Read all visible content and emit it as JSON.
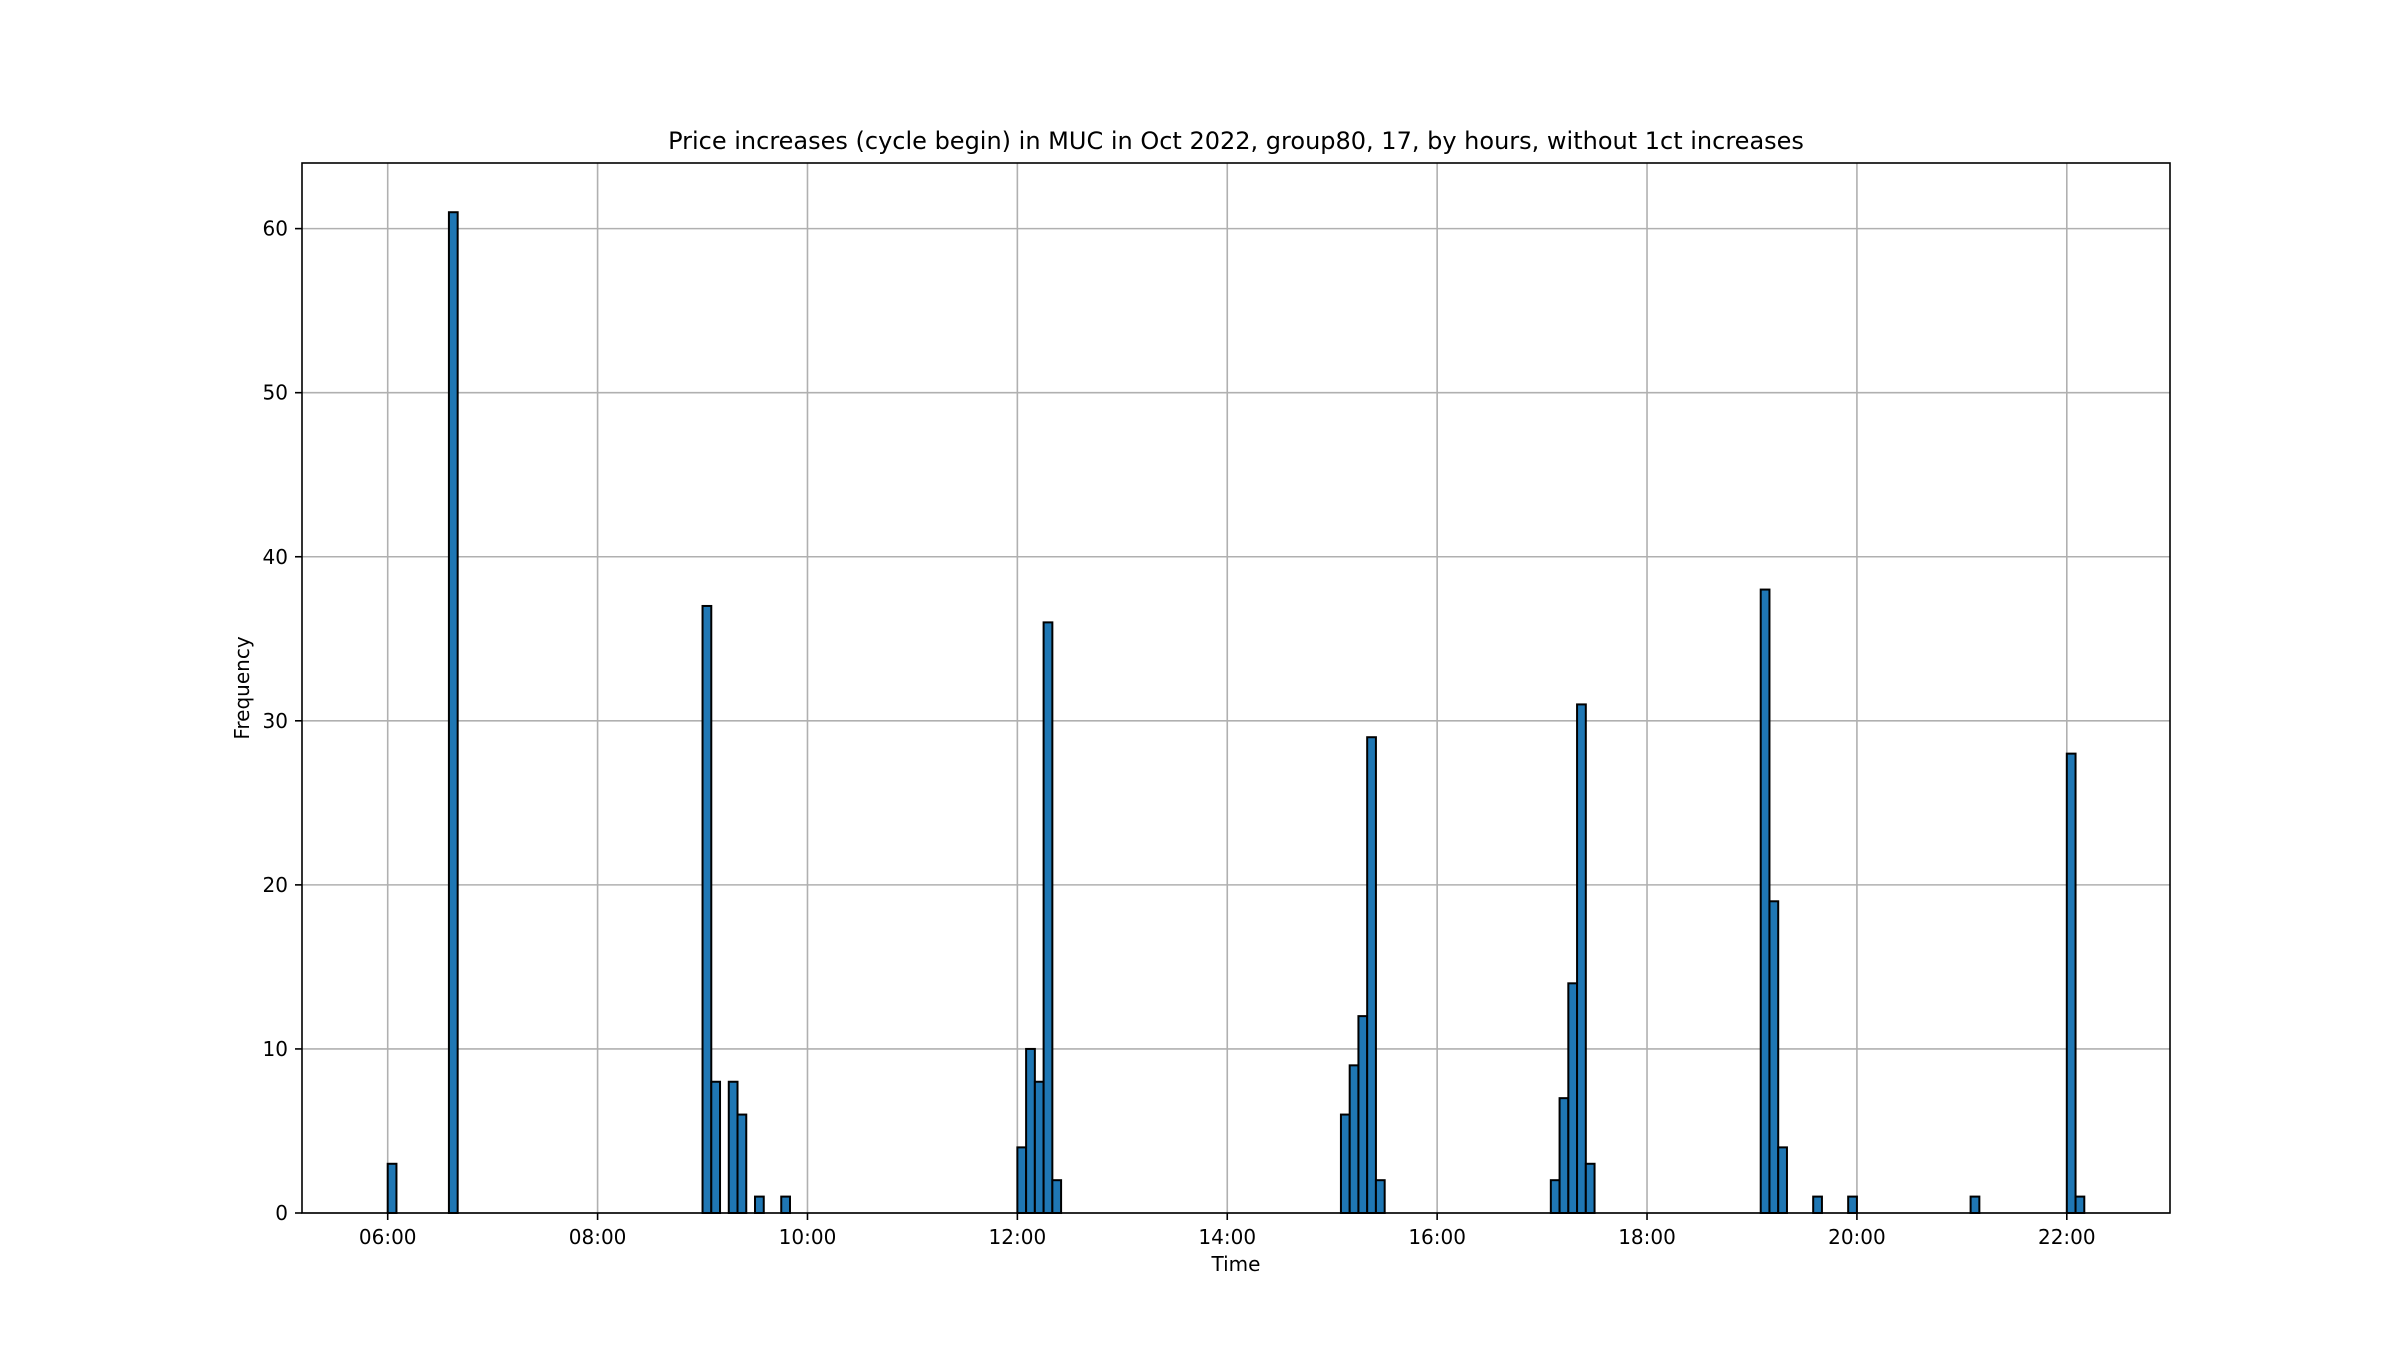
{
  "chart_data": {
    "type": "bar",
    "title": "Price increases (cycle begin) in MUC in Oct 2022, group80, 17, by hours, without 1ct increases",
    "xlabel": "Time",
    "ylabel": "Frequency",
    "xlim": [
      "05:11",
      "22:59"
    ],
    "ylim": [
      0,
      64
    ],
    "grid": true,
    "bar_color": "#1f77b4",
    "bin_minutes": 5,
    "x_ticks": [
      "06:00",
      "08:00",
      "10:00",
      "12:00",
      "14:00",
      "16:00",
      "18:00",
      "20:00",
      "22:00"
    ],
    "y_ticks": [
      0,
      10,
      20,
      30,
      40,
      50,
      60
    ],
    "bars": [
      {
        "x": "06:00",
        "value": 3
      },
      {
        "x": "06:35",
        "value": 61
      },
      {
        "x": "09:00",
        "value": 37
      },
      {
        "x": "09:05",
        "value": 8
      },
      {
        "x": "09:15",
        "value": 8
      },
      {
        "x": "09:20",
        "value": 6
      },
      {
        "x": "09:30",
        "value": 1
      },
      {
        "x": "09:45",
        "value": 1
      },
      {
        "x": "12:00",
        "value": 4
      },
      {
        "x": "12:05",
        "value": 10
      },
      {
        "x": "12:10",
        "value": 8
      },
      {
        "x": "12:15",
        "value": 36
      },
      {
        "x": "12:20",
        "value": 2
      },
      {
        "x": "15:05",
        "value": 6
      },
      {
        "x": "15:10",
        "value": 9
      },
      {
        "x": "15:15",
        "value": 12
      },
      {
        "x": "15:20",
        "value": 29
      },
      {
        "x": "15:25",
        "value": 2
      },
      {
        "x": "17:05",
        "value": 2
      },
      {
        "x": "17:10",
        "value": 7
      },
      {
        "x": "17:15",
        "value": 14
      },
      {
        "x": "17:20",
        "value": 31
      },
      {
        "x": "17:25",
        "value": 3
      },
      {
        "x": "19:05",
        "value": 38
      },
      {
        "x": "19:10",
        "value": 19
      },
      {
        "x": "19:15",
        "value": 4
      },
      {
        "x": "19:35",
        "value": 1
      },
      {
        "x": "19:55",
        "value": 1
      },
      {
        "x": "21:05",
        "value": 1
      },
      {
        "x": "22:00",
        "value": 28
      },
      {
        "x": "22:05",
        "value": 1
      }
    ]
  }
}
